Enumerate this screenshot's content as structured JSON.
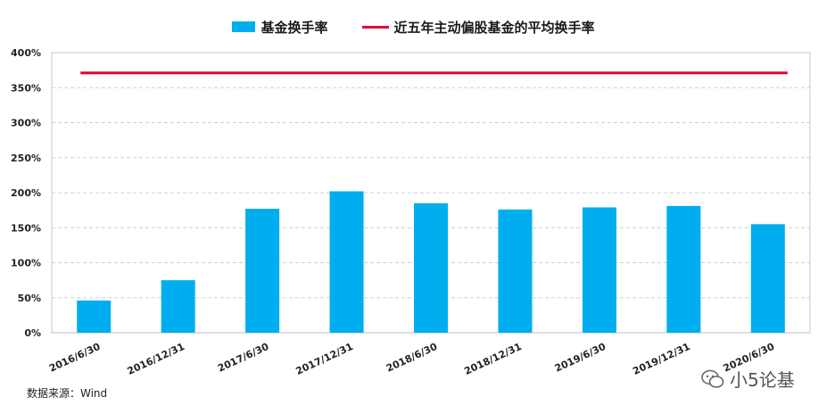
{
  "chart_data": {
    "type": "bar",
    "categories": [
      "2016/6/30",
      "2016/12/31",
      "2017/6/30",
      "2017/12/31",
      "2018/6/30",
      "2018/12/31",
      "2019/6/30",
      "2019/12/31",
      "2020/6/30"
    ],
    "series": [
      {
        "name": "基金换手率",
        "type": "bar",
        "color": "#00AEEF",
        "values": [
          46,
          75,
          177,
          202,
          185,
          176,
          179,
          181,
          155
        ]
      },
      {
        "name": "近五年主动偏股基金的平均换手率",
        "type": "line",
        "color": "#E3003A",
        "values": [
          371,
          371,
          371,
          371,
          371,
          371,
          371,
          371,
          371
        ]
      }
    ],
    "ylim": [
      0,
      400
    ],
    "yticks": [
      "0%",
      "50%",
      "100%",
      "150%",
      "200%",
      "250%",
      "300%",
      "350%",
      "400%"
    ],
    "grid": true,
    "legend_position": "top-center"
  },
  "source": "数据来源：Wind",
  "watermark": {
    "text": "小5论基",
    "icon": "wechat-icon"
  }
}
